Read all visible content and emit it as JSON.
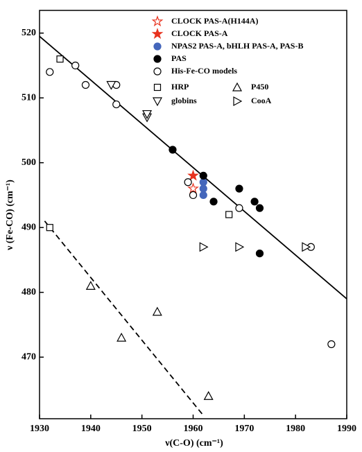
{
  "chart_data": {
    "type": "scatter",
    "xlabel": "ν(C-O) (cm⁻¹)",
    "ylabel": "ν (Fe-CO) (cm⁻¹)",
    "xlim": [
      1930,
      1990
    ],
    "xticks": [
      1930,
      1940,
      1950,
      1960,
      1970,
      1980,
      1990
    ],
    "ylim": [
      460.5,
      523.5
    ],
    "yticks": [
      470,
      480,
      490,
      500,
      510,
      520
    ],
    "series": [
      {
        "name": "CLOCK PAS-A(H144A)",
        "marker": "star",
        "color": "#e8321e",
        "filled": false,
        "x": [
          1960
        ],
        "values": [
          496
        ]
      },
      {
        "name": "CLOCK PAS-A",
        "marker": "star",
        "color": "#e8321e",
        "filled": true,
        "x": [
          1960
        ],
        "values": [
          498
        ]
      },
      {
        "name": "NPAS2 PAS-A, bHLH PAS-A, PAS-B",
        "marker": "circle",
        "color": "#4466bb",
        "filled": true,
        "x": [
          1962,
          1962,
          1962
        ],
        "values": [
          497,
          496,
          495
        ]
      },
      {
        "name": "PAS",
        "marker": "circle",
        "color": "#000000",
        "filled": true,
        "x": [
          1956,
          1962,
          1964,
          1969,
          1972,
          1973,
          1973
        ],
        "values": [
          502,
          498,
          494,
          496,
          494,
          493,
          486
        ]
      },
      {
        "name": "His-Fe-CO models",
        "marker": "circle",
        "color": "#000000",
        "filled": false,
        "x": [
          1932,
          1937,
          1939,
          1945,
          1945,
          1959,
          1960,
          1969,
          1983,
          1987
        ],
        "values": [
          514,
          515,
          512,
          509,
          512,
          497,
          495,
          493,
          487,
          472
        ]
      },
      {
        "name": "HRP",
        "marker": "square",
        "color": "#000000",
        "filled": false,
        "x": [
          1934,
          1932,
          1967
        ],
        "values": [
          516,
          490,
          492
        ]
      },
      {
        "name": "P450",
        "marker": "triangle-up",
        "color": "#000000",
        "filled": false,
        "x": [
          1940,
          1946,
          1953,
          1963
        ],
        "values": [
          481,
          473,
          477,
          464
        ]
      },
      {
        "name": "globins",
        "marker": "triangle-down",
        "color": "#000000",
        "filled": false,
        "x": [
          1944,
          1951,
          1951
        ],
        "values": [
          512,
          507,
          507.5
        ]
      },
      {
        "name": "CooA",
        "marker": "triangle-right",
        "color": "#000000",
        "filled": false,
        "x": [
          1962,
          1969,
          1982
        ],
        "values": [
          487,
          487,
          487
        ]
      }
    ],
    "lines": [
      {
        "dashed": false,
        "x": [
          1930,
          1990
        ],
        "values": [
          519.5,
          479
        ]
      },
      {
        "dashed": true,
        "x": [
          1931,
          1962
        ],
        "values": [
          491,
          461
        ]
      }
    ]
  }
}
